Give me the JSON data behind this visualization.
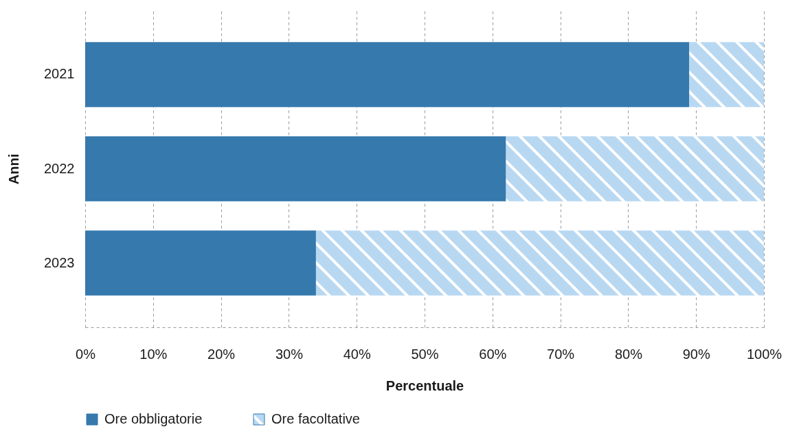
{
  "chart_data": {
    "type": "bar",
    "orientation": "horizontal",
    "stacked": true,
    "categories": [
      "2021",
      "2022",
      "2023"
    ],
    "series": [
      {
        "name": "Ore obbligatorie",
        "color": "#3579ad",
        "values": [
          89,
          62,
          34
        ]
      },
      {
        "name": "Ore facoltative",
        "color": "#b8d8f2",
        "values": [
          11,
          38,
          66
        ]
      }
    ],
    "xlabel": "Percentuale",
    "ylabel": "Anni",
    "xlim": [
      0,
      100
    ],
    "xticks": [
      {
        "value": 0,
        "label": "0%"
      },
      {
        "value": 10,
        "label": "10%"
      },
      {
        "value": 20,
        "label": "20%"
      },
      {
        "value": 30,
        "label": "30%"
      },
      {
        "value": 40,
        "label": "40%"
      },
      {
        "value": 50,
        "label": "50%"
      },
      {
        "value": 60,
        "label": "60%"
      },
      {
        "value": 70,
        "label": "70%"
      },
      {
        "value": 80,
        "label": "80%"
      },
      {
        "value": 90,
        "label": "90%"
      },
      {
        "value": 100,
        "label": "100%"
      }
    ],
    "grid": "x",
    "legend": "bottom left"
  }
}
